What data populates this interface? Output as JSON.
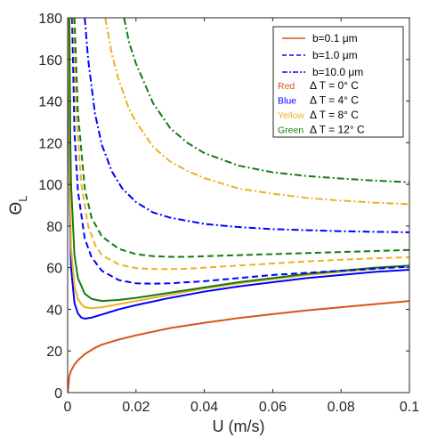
{
  "colors": {
    "red": "#d95319",
    "blue": "#0000ff",
    "yellow": "#edb120",
    "green": "#127d12",
    "axis": "#262626"
  },
  "chart_data": {
    "type": "line",
    "xlabel": "U (m/s)",
    "ylabel": "Θ",
    "ylabel_sub": "L",
    "xlim": [
      0,
      0.1
    ],
    "ylim": [
      0,
      180
    ],
    "x_ticks": [
      0,
      0.02,
      0.04,
      0.06,
      0.08,
      0.1
    ],
    "x_tick_labels": [
      "0",
      "0.02",
      "0.04",
      "0.06",
      "0.08",
      "0.1"
    ],
    "y_ticks": [
      0,
      20,
      40,
      60,
      80,
      100,
      120,
      140,
      160,
      180
    ],
    "y_tick_labels": [
      "0",
      "20",
      "40",
      "60",
      "80",
      "100",
      "120",
      "140",
      "160",
      "180"
    ],
    "legend": {
      "placement": "top-right",
      "linestyles": [
        {
          "label": "b=0.1 μm",
          "dash": "solid"
        },
        {
          "label": "b=1.0 μm",
          "dash": "dashed"
        },
        {
          "label": "b=10.0 μm",
          "dash": "dashdot"
        }
      ],
      "temperatures": [
        {
          "color_name": "Red",
          "color": "#d95319",
          "label": "Δ T = 0° C"
        },
        {
          "color_name": "Blue",
          "color": "#0000ff",
          "label": "Δ T = 4° C"
        },
        {
          "color_name": "Yellow",
          "color": "#edb120",
          "label": "Δ T = 8° C"
        },
        {
          "color_name": "Green",
          "color": "#127d12",
          "label": "Δ T = 12° C"
        }
      ]
    },
    "series": [
      {
        "color": "#d95319",
        "dash": "solid",
        "x": [
          0,
          0.0005,
          0.001,
          0.002,
          0.003,
          0.005,
          0.008,
          0.01,
          0.015,
          0.02,
          0.03,
          0.04,
          0.05,
          0.06,
          0.07,
          0.08,
          0.09,
          0.1
        ],
        "y": [
          0,
          8,
          10.5,
          13.5,
          15.5,
          18.5,
          21.5,
          23,
          25.5,
          27.5,
          31,
          33.5,
          35.8,
          37.7,
          39.5,
          41,
          42.5,
          44
        ]
      },
      {
        "color": "#0000ff",
        "dash": "solid",
        "x": [
          0.0002,
          0.0005,
          0.001,
          0.002,
          0.003,
          0.004,
          0.005,
          0.007,
          0.01,
          0.015,
          0.02,
          0.03,
          0.04,
          0.05,
          0.06,
          0.07,
          0.08,
          0.09,
          0.1
        ],
        "y": [
          180,
          100,
          60,
          43,
          38,
          36,
          35.5,
          36,
          37.5,
          40,
          42,
          45.5,
          48.5,
          51,
          53,
          55,
          56.5,
          58,
          59
        ]
      },
      {
        "color": "#edb120",
        "dash": "solid",
        "x": [
          0.0003,
          0.0006,
          0.001,
          0.002,
          0.003,
          0.004,
          0.005,
          0.007,
          0.01,
          0.015,
          0.02,
          0.03,
          0.04,
          0.05,
          0.06,
          0.07,
          0.08,
          0.09,
          0.1
        ],
        "y": [
          180,
          100,
          70,
          51,
          45,
          42.5,
          41,
          40.5,
          41,
          42.5,
          44,
          47,
          50,
          52.5,
          54.5,
          56.5,
          58,
          59.5,
          61
        ]
      },
      {
        "color": "#127d12",
        "dash": "solid",
        "x": [
          0.0005,
          0.0008,
          0.001,
          0.002,
          0.003,
          0.005,
          0.007,
          0.01,
          0.015,
          0.02,
          0.03,
          0.04,
          0.05,
          0.06,
          0.07,
          0.08,
          0.09,
          0.1
        ],
        "y": [
          180,
          120,
          100,
          66,
          55,
          47.5,
          45,
          44,
          44.5,
          45.5,
          48,
          50.5,
          53,
          55,
          57,
          58.5,
          60,
          61
        ]
      },
      {
        "color": "#0000ff",
        "dash": "dashed",
        "x": [
          0.0013,
          0.002,
          0.003,
          0.005,
          0.007,
          0.01,
          0.015,
          0.02,
          0.025,
          0.03,
          0.04,
          0.05,
          0.06,
          0.07,
          0.08,
          0.09,
          0.1
        ],
        "y": [
          180,
          125,
          97,
          74,
          65,
          58.5,
          54,
          52.5,
          52.3,
          52.5,
          53.5,
          55,
          56.5,
          57.5,
          58.5,
          59.5,
          60.5
        ]
      },
      {
        "color": "#edb120",
        "dash": "dashed",
        "x": [
          0.0017,
          0.0025,
          0.004,
          0.006,
          0.008,
          0.01,
          0.015,
          0.02,
          0.025,
          0.03,
          0.035,
          0.04,
          0.05,
          0.06,
          0.07,
          0.08,
          0.09,
          0.1
        ],
        "y": [
          180,
          135,
          100,
          80,
          71,
          66,
          61.5,
          59.8,
          59.3,
          59.3,
          59.5,
          60,
          61,
          62,
          63,
          63.8,
          64.5,
          65
        ]
      },
      {
        "color": "#127d12",
        "dash": "dashed",
        "x": [
          0.002,
          0.003,
          0.005,
          0.007,
          0.01,
          0.015,
          0.02,
          0.025,
          0.03,
          0.035,
          0.04,
          0.05,
          0.06,
          0.07,
          0.08,
          0.09,
          0.1
        ],
        "y": [
          180,
          135,
          98,
          84,
          75,
          69,
          66.5,
          65.5,
          65.2,
          65.2,
          65.5,
          66,
          66.5,
          67,
          67.5,
          68,
          68.5
        ]
      },
      {
        "color": "#0000ff",
        "dash": "dashdot",
        "x": [
          0.005,
          0.006,
          0.008,
          0.01,
          0.013,
          0.016,
          0.02,
          0.025,
          0.03,
          0.04,
          0.05,
          0.06,
          0.07,
          0.08,
          0.09,
          0.1
        ],
        "y": [
          180,
          160,
          134,
          119,
          106,
          98,
          91.5,
          86.5,
          84,
          81,
          79.5,
          78.5,
          78,
          77.5,
          77.2,
          77
        ]
      },
      {
        "color": "#edb120",
        "dash": "dashdot",
        "x": [
          0.011,
          0.013,
          0.015,
          0.018,
          0.02,
          0.025,
          0.03,
          0.035,
          0.04,
          0.05,
          0.06,
          0.07,
          0.08,
          0.09,
          0.1
        ],
        "y": [
          180,
          162,
          150,
          136,
          130,
          118,
          111,
          106.5,
          103,
          98,
          95.5,
          93.5,
          92.2,
          91.2,
          90.5
        ]
      },
      {
        "color": "#127d12",
        "dash": "dashdot",
        "x": [
          0.0165,
          0.018,
          0.02,
          0.025,
          0.03,
          0.035,
          0.04,
          0.05,
          0.06,
          0.07,
          0.08,
          0.09,
          0.1
        ],
        "y": [
          180,
          168,
          158,
          139,
          127,
          120,
          115,
          109,
          105.8,
          104,
          102.8,
          101.8,
          101
        ]
      }
    ]
  }
}
